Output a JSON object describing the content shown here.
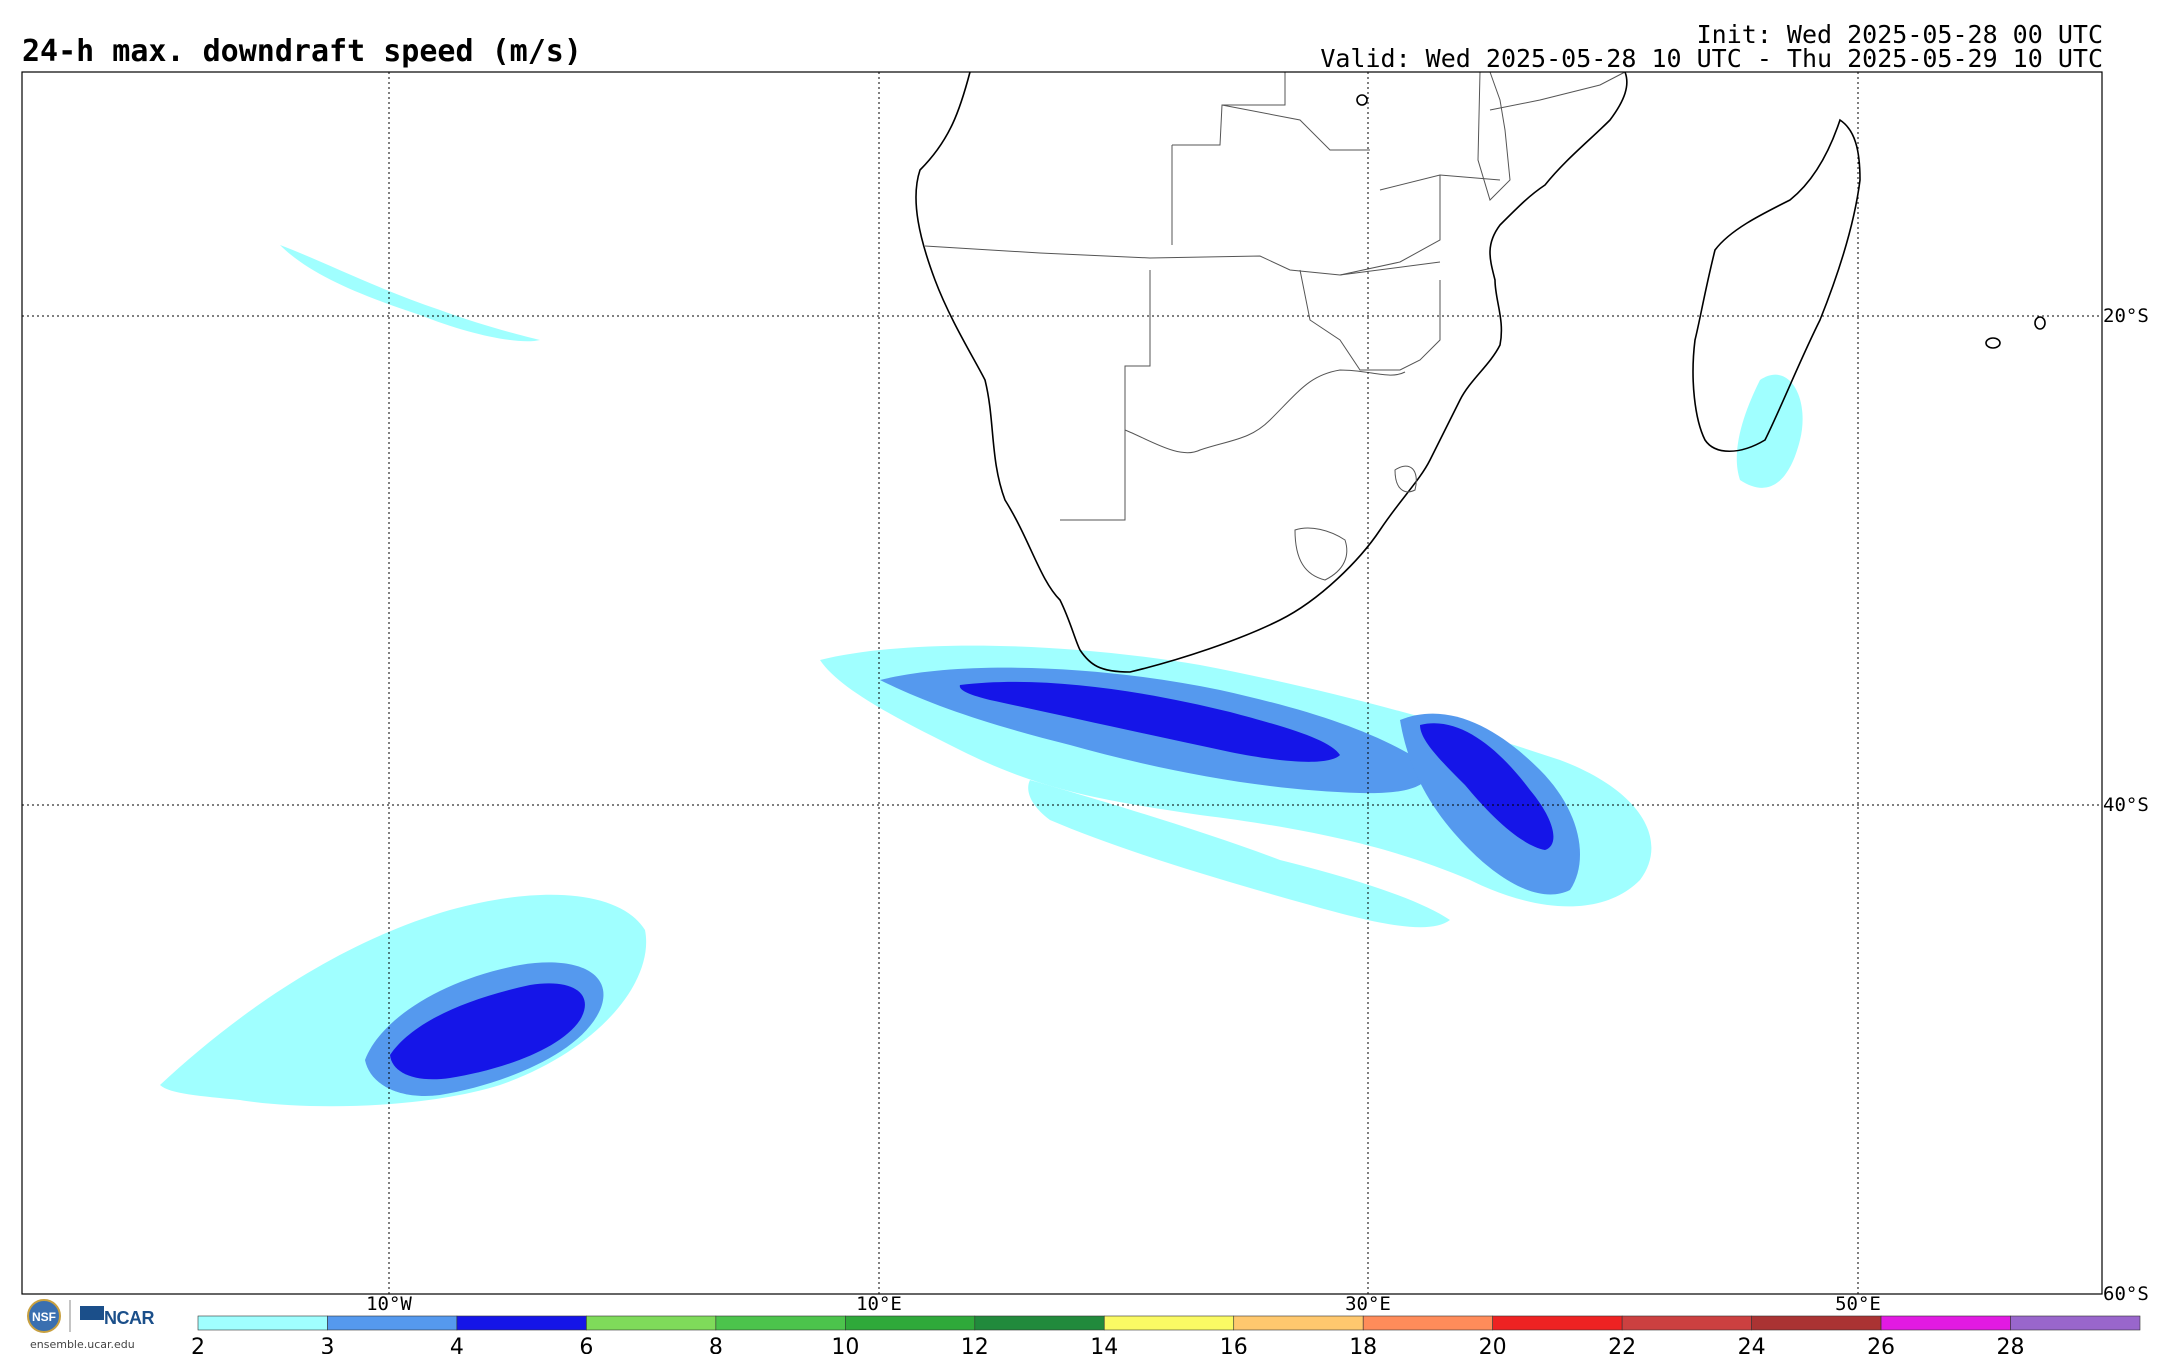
{
  "header": {
    "title": "24-h max. downdraft speed (m/s)",
    "init": "Init: Wed 2025-05-28 00 UTC",
    "valid": "Valid: Wed 2025-05-28 10 UTC - Thu 2025-05-29 10 UTC"
  },
  "map": {
    "lon_labels": [
      "10°W",
      "10°E",
      "30°E",
      "50°E"
    ],
    "lat_labels": [
      "20°S",
      "40°S",
      "60°S"
    ],
    "gridlines": "dotted"
  },
  "colorbar": {
    "ticks": [
      "2",
      "3",
      "4",
      "6",
      "8",
      "10",
      "12",
      "14",
      "16",
      "18",
      "20",
      "22",
      "24",
      "26",
      "28"
    ],
    "colors": [
      "#a0ffff",
      "#5599ee",
      "#1515e8",
      "#7fdb5a",
      "#4cc44c",
      "#2fa93a",
      "#218a3c",
      "#fafa64",
      "#ffc86e",
      "#ff8c5a",
      "#ee2222",
      "#cc4040",
      "#aa3333",
      "#e21ae2",
      "#9966cc"
    ]
  },
  "footer": {
    "logo_text": "NCAR",
    "url": "ensemble.ucar.edu"
  }
}
